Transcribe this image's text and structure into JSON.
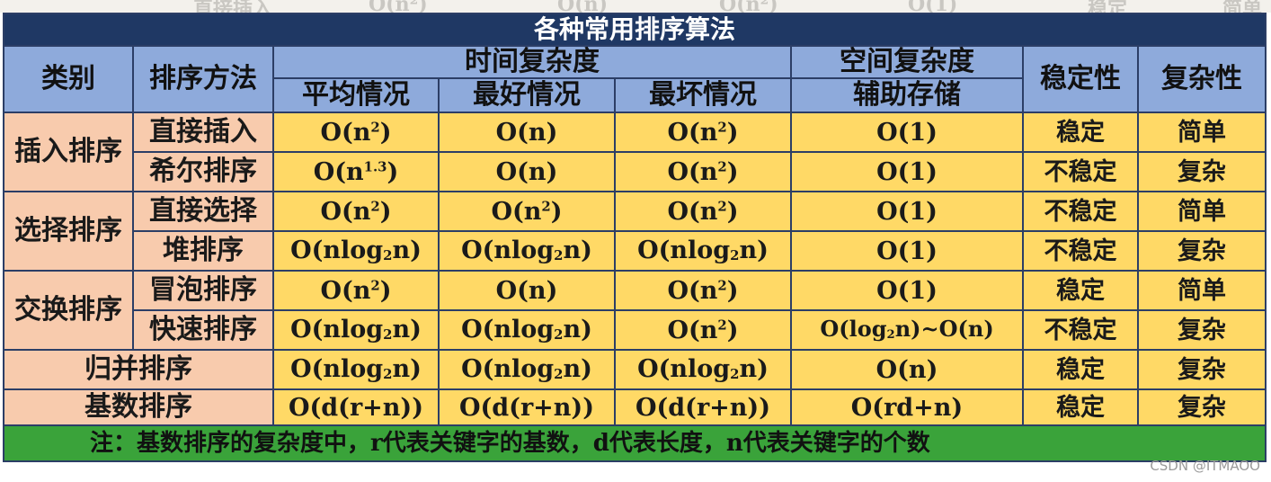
{
  "title": "各种常用排序算法",
  "headers": {
    "category": "类别",
    "method": "排序方法",
    "time_complexity": "时间复杂度",
    "space_complexity": "空间复杂度",
    "stability": "稳定性",
    "complexity": "复杂性",
    "average": "平均情况",
    "best": "最好情况",
    "worst": "最坏情况",
    "auxiliary": "辅助存储"
  },
  "groups": {
    "insertion": "插入排序",
    "selection": "选择排序",
    "exchange": "交换排序",
    "merge": "归并排序",
    "radix": "基数排序"
  },
  "rows": [
    {
      "method": "直接插入",
      "average": "O(n²)",
      "best": "O(n)",
      "worst": "O(n²)",
      "space": "O(1)",
      "stability": "稳定",
      "complexity": "简单"
    },
    {
      "method": "希尔排序",
      "average": "O(n^1.3)",
      "best": "O(n)",
      "worst": "O(n²)",
      "space": "O(1)",
      "stability": "不稳定",
      "complexity": "复杂"
    },
    {
      "method": "直接选择",
      "average": "O(n²)",
      "best": "O(n²)",
      "worst": "O(n²)",
      "space": "O(1)",
      "stability": "不稳定",
      "complexity": "简单"
    },
    {
      "method": "堆排序",
      "average": "O(nlog₂n)",
      "best": "O(nlog₂n)",
      "worst": "O(nlog₂n)",
      "space": "O(1)",
      "stability": "不稳定",
      "complexity": "复杂"
    },
    {
      "method": "冒泡排序",
      "average": "O(n²)",
      "best": "O(n)",
      "worst": "O(n²)",
      "space": "O(1)",
      "stability": "稳定",
      "complexity": "简单"
    },
    {
      "method": "快速排序",
      "average": "O(nlog₂n)",
      "best": "O(nlog₂n)",
      "worst": "O(n²)",
      "space": "O(log₂n)~O(n)",
      "stability": "不稳定",
      "complexity": "复杂"
    },
    {
      "method": "",
      "average": "O(nlog₂n)",
      "best": "O(nlog₂n)",
      "worst": "O(nlog₂n)",
      "space": "O(n)",
      "stability": "稳定",
      "complexity": "复杂"
    },
    {
      "method": "",
      "average": "O(d(r+n))",
      "best": "O(d(r+n))",
      "worst": "O(d(r+n))",
      "space": "O(rd+n)",
      "stability": "稳定",
      "complexity": "复杂"
    }
  ],
  "note": "注：基数排序的复杂度中，r代表关键字的基数，d代表长度，n代表关键字的个数",
  "watermark": "CSDN @ITMAOO",
  "colors": {
    "title_bg": "#1f3864",
    "header_bg": "#8eaadb",
    "category_bg": "#f8cbad",
    "value_bg": "#ffd966",
    "note_bg": "#3aa33a"
  }
}
